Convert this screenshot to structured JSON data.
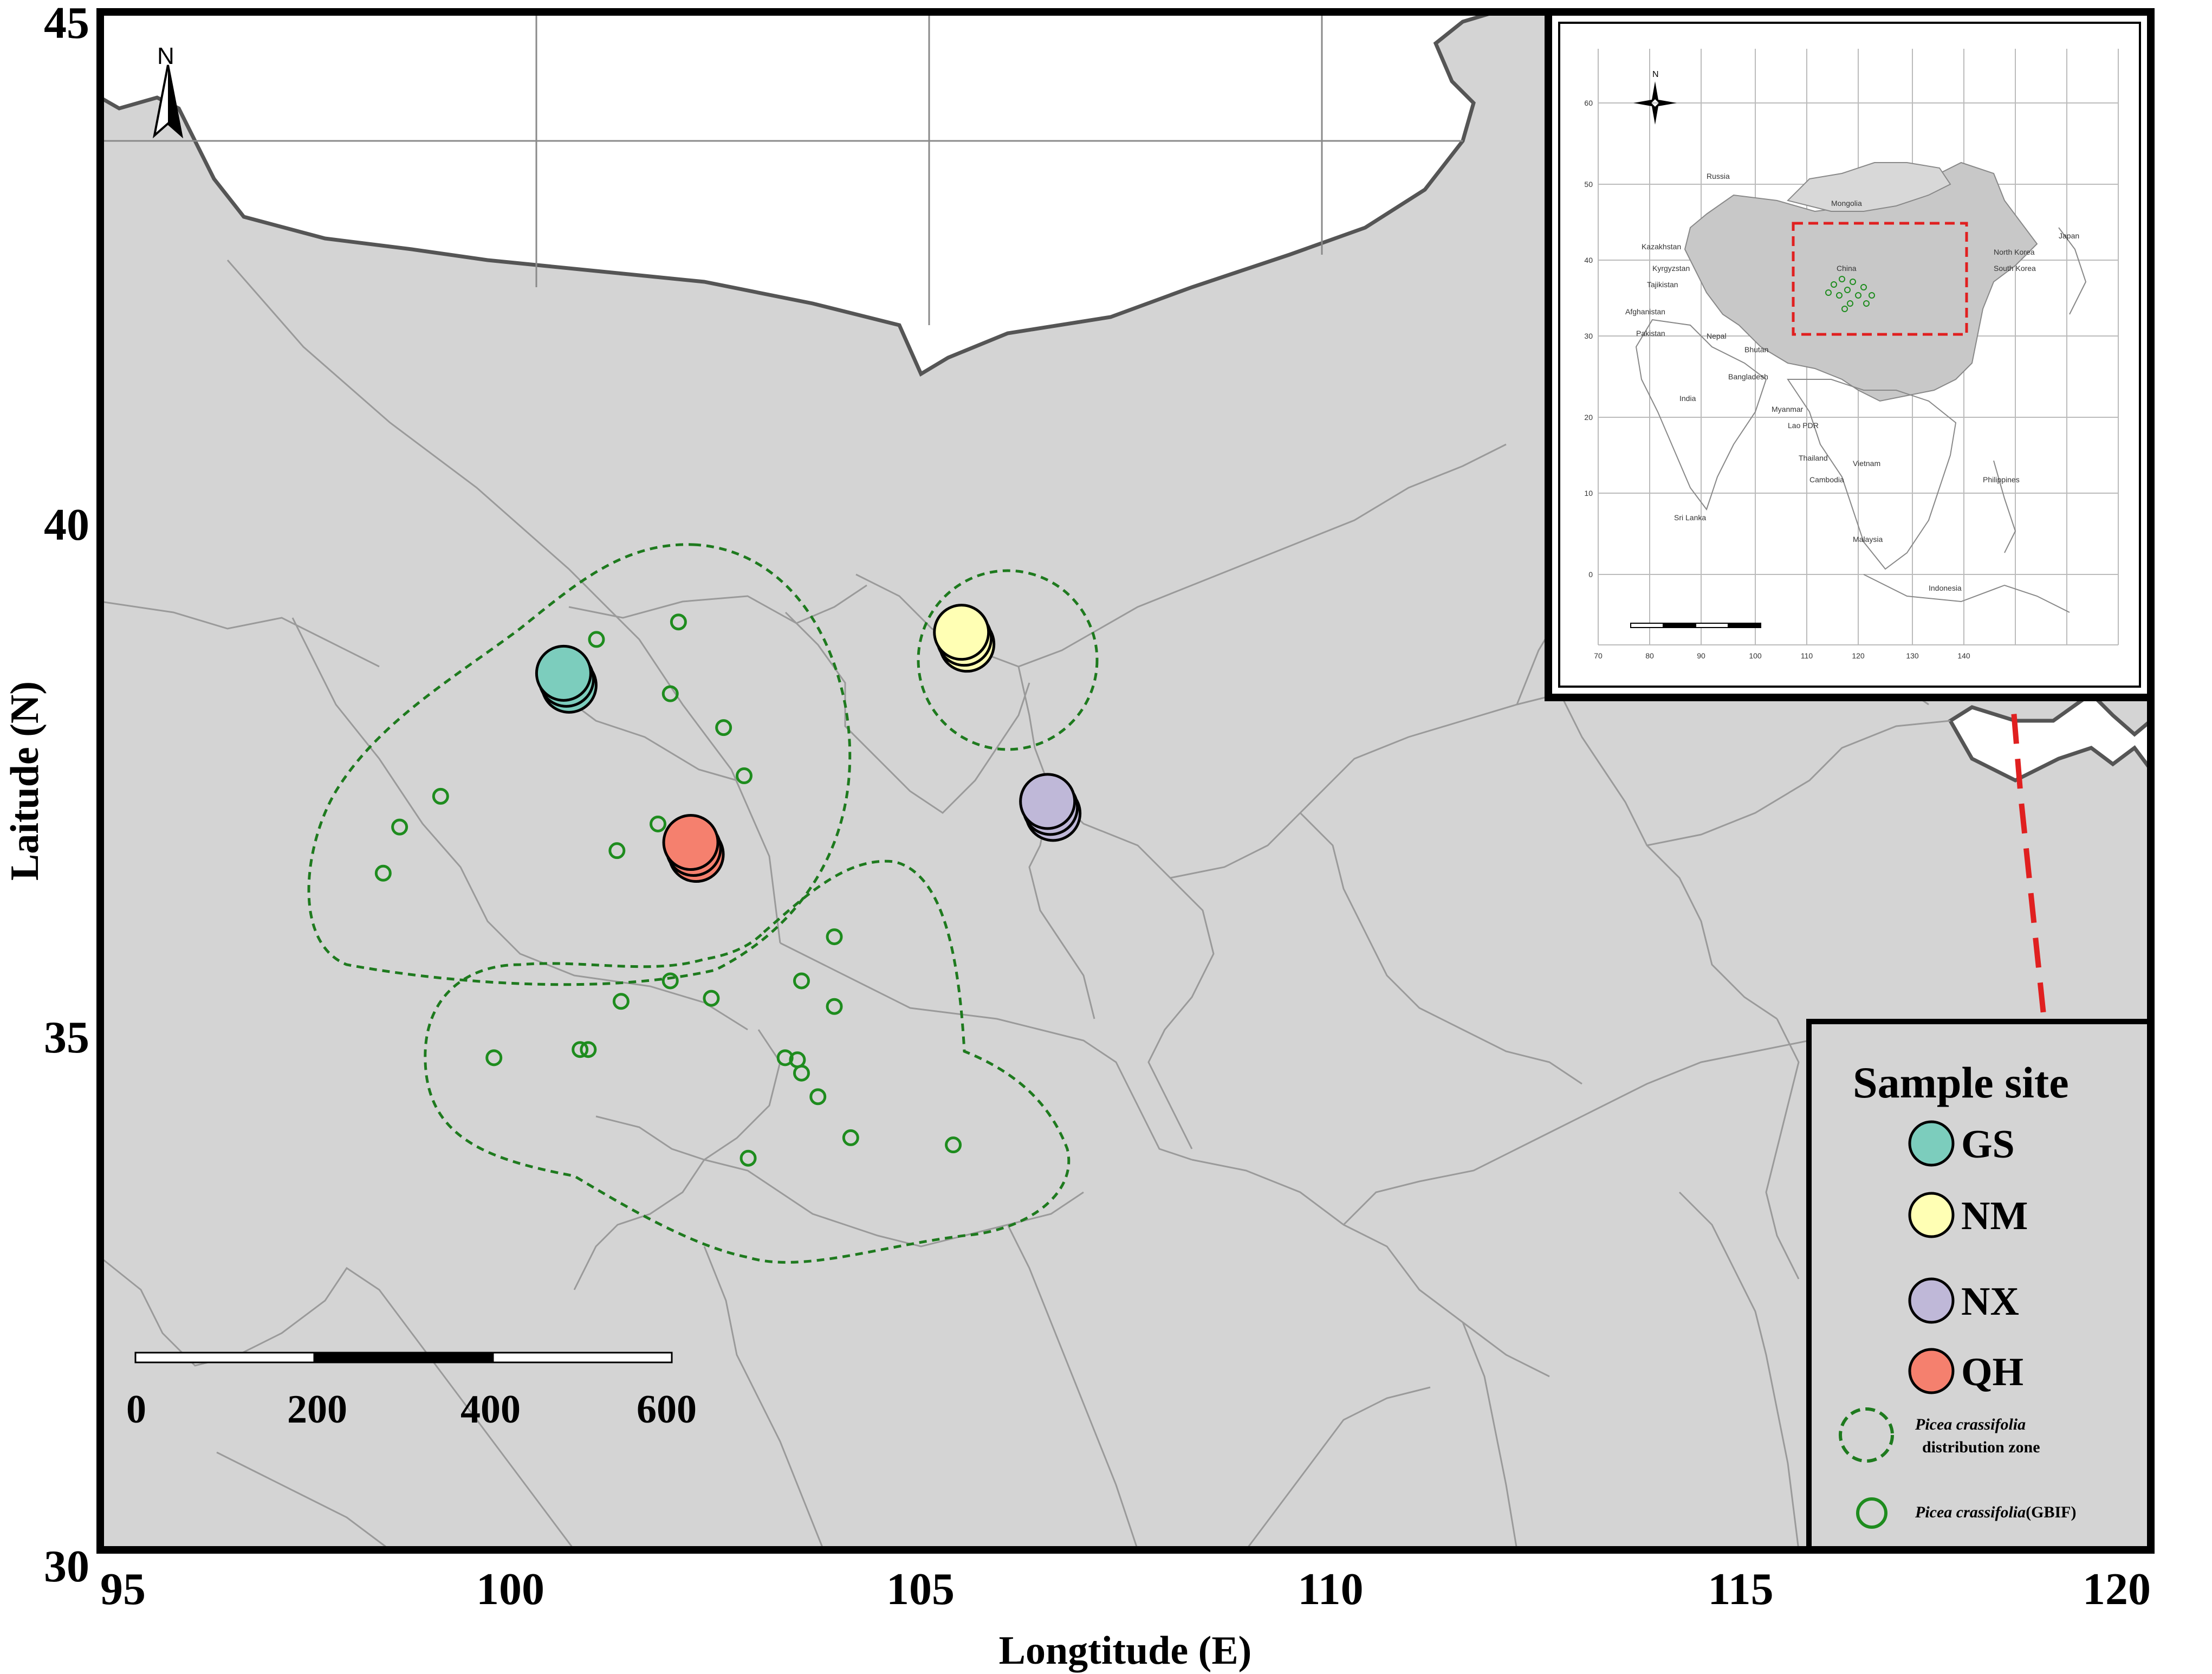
{
  "x_axis": {
    "title": "Longtitude (E)",
    "min": 95,
    "max": 120,
    "ticks": [
      95,
      100,
      105,
      110,
      115,
      120
    ]
  },
  "y_axis": {
    "title": "Laitude (N)",
    "min": 30,
    "max": 45,
    "ticks": [
      30,
      35,
      40,
      45
    ]
  },
  "north_arrow": {
    "label": "N"
  },
  "scale_bar": {
    "labels": [
      "0",
      "200",
      "400",
      "600"
    ]
  },
  "sample_sites": [
    {
      "name": "GS",
      "lon": 100.65,
      "lat": 38.55,
      "color": "#7ccdbd"
    },
    {
      "name": "NM",
      "lon": 105.5,
      "lat": 38.95,
      "color": "#ffffb4"
    },
    {
      "name": "NX",
      "lon": 106.55,
      "lat": 37.3,
      "color": "#bfb8d8"
    },
    {
      "name": "QH",
      "lon": 102.2,
      "lat": 36.9,
      "color": "#f5806e"
    }
  ],
  "gbif_points": [
    [
      101.05,
      38.88
    ],
    [
      102.05,
      39.05
    ],
    [
      101.95,
      38.35
    ],
    [
      102.6,
      38.02
    ],
    [
      102.85,
      37.55
    ],
    [
      99.15,
      37.35
    ],
    [
      98.65,
      37.05
    ],
    [
      98.45,
      36.6
    ],
    [
      101.3,
      36.82
    ],
    [
      101.8,
      37.08
    ],
    [
      103.95,
      35.98
    ],
    [
      101.95,
      35.55
    ],
    [
      102.45,
      35.38
    ],
    [
      101.35,
      35.35
    ],
    [
      103.55,
      35.55
    ],
    [
      103.95,
      35.3
    ],
    [
      99.8,
      34.8
    ],
    [
      100.85,
      34.88
    ],
    [
      100.95,
      34.88
    ],
    [
      103.35,
      34.8
    ],
    [
      103.5,
      34.78
    ],
    [
      103.55,
      34.65
    ],
    [
      103.75,
      34.42
    ],
    [
      104.15,
      34.02
    ],
    [
      105.4,
      33.95
    ],
    [
      102.9,
      33.82
    ]
  ],
  "legend": {
    "title": "Sample site",
    "items": [
      "GS",
      "NM",
      "NX",
      "QH"
    ],
    "zone_species": "Picea crassifolia",
    "zone_text": "distribution zone",
    "gbif_species": "Picea crassifolia",
    "gbif_text": "(GBIF)"
  },
  "inset": {
    "north_label": "N",
    "country_labels": [
      "Mongolia",
      "China",
      "India",
      "Nepal",
      "Bhutan",
      "Bangladesh",
      "Myanmar",
      "Lao PDR",
      "Thailand",
      "Cambodia",
      "Vietnam",
      "Philippines",
      "Malaysia",
      "Indonesia",
      "Sri Lanka",
      "Japan",
      "North Korea",
      "South Korea",
      "Kazakhstan",
      "Kyrgyzstan",
      "Tajikistan",
      "Afghanistan",
      "Pakistan",
      "Russia"
    ],
    "lon_ticks": [
      "70",
      "80",
      "90",
      "100",
      "110",
      "120",
      "130",
      "140"
    ],
    "lat_ticks": [
      "0",
      "10",
      "20",
      "30",
      "40",
      "50",
      "60"
    ]
  },
  "colors": {
    "land": "#d4d4d4",
    "border": "#9a9a9a",
    "coast": "#555555",
    "zone": "#1e7a1e",
    "gbif": "#1e8c1e",
    "inset_box": "#e02020"
  }
}
